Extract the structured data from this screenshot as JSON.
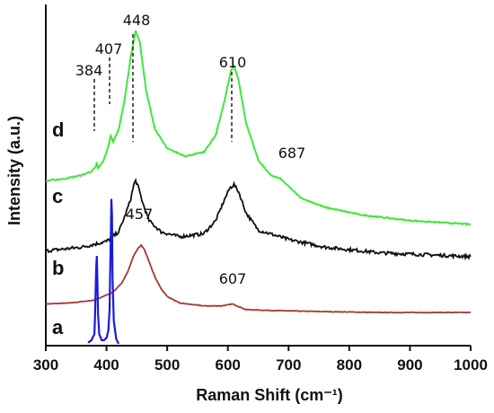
{
  "chart_data": {
    "type": "line",
    "title": "",
    "xlabel": "Raman Shift  (cm⁻¹)",
    "ylabel": "Intensity (a.u.)",
    "xlim": [
      300,
      1000
    ],
    "x_ticks": [
      "300",
      "400",
      "500",
      "600",
      "700",
      "800",
      "900",
      "1000"
    ],
    "y_ticks_shown": false,
    "grid": false,
    "legend": "none",
    "series": [
      {
        "name": "a",
        "color": "#1a1adf",
        "x": [
          370,
          375,
          380,
          381,
          382,
          383,
          384,
          385,
          386,
          388,
          392,
          396,
          400,
          403,
          405,
          406,
          407,
          408,
          409,
          410,
          412,
          416,
          420
        ],
        "y": [
          0.03,
          0.06,
          0.12,
          0.28,
          0.55,
          0.82,
          0.95,
          0.7,
          0.35,
          0.12,
          0.06,
          0.06,
          0.08,
          0.16,
          0.38,
          0.75,
          1.12,
          1.55,
          1.38,
          0.72,
          0.26,
          0.07,
          0.02
        ]
      },
      {
        "name": "b",
        "color": "#a33a33",
        "x": [
          300,
          340,
          380,
          410,
          425,
          435,
          445,
          452,
          457,
          462,
          470,
          480,
          490,
          500,
          520,
          560,
          590,
          600,
          607,
          615,
          630,
          680,
          750,
          850,
          1000
        ],
        "y": [
          0.44,
          0.45,
          0.48,
          0.56,
          0.66,
          0.78,
          0.95,
          1.03,
          1.06,
          1.02,
          0.89,
          0.72,
          0.6,
          0.52,
          0.45,
          0.42,
          0.42,
          0.43,
          0.44,
          0.42,
          0.38,
          0.37,
          0.36,
          0.35,
          0.35
        ]
      },
      {
        "name": "c",
        "color": "#111111",
        "x": [
          300,
          360,
          400,
          420,
          430,
          440,
          445,
          448,
          452,
          460,
          470,
          490,
          520,
          560,
          580,
          595,
          603,
          610,
          618,
          630,
          650,
          700,
          760,
          850,
          1000
        ],
        "y": [
          1.0,
          1.04,
          1.1,
          1.2,
          1.36,
          1.55,
          1.7,
          1.74,
          1.68,
          1.5,
          1.32,
          1.2,
          1.15,
          1.18,
          1.32,
          1.55,
          1.66,
          1.7,
          1.62,
          1.4,
          1.22,
          1.12,
          1.04,
          0.98,
          0.94
        ]
      },
      {
        "name": "d",
        "color": "#3fe83a",
        "x": [
          300,
          330,
          360,
          375,
          382,
          384,
          386,
          395,
          403,
          407,
          411,
          420,
          430,
          440,
          448,
          455,
          465,
          480,
          500,
          530,
          560,
          580,
          595,
          605,
          610,
          617,
          630,
          650,
          670,
          687,
          700,
          720,
          760,
          820,
          900,
          1000
        ],
        "y": [
          1.74,
          1.76,
          1.8,
          1.84,
          1.88,
          1.93,
          1.87,
          1.95,
          2.1,
          2.22,
          2.15,
          2.28,
          2.6,
          3.05,
          3.32,
          3.2,
          2.7,
          2.28,
          2.08,
          2.0,
          2.04,
          2.22,
          2.6,
          2.9,
          2.95,
          2.82,
          2.35,
          1.96,
          1.8,
          1.76,
          1.68,
          1.56,
          1.46,
          1.38,
          1.32,
          1.28
        ]
      }
    ],
    "annotations": [
      {
        "text": "384",
        "x": 384
      },
      {
        "text": "407",
        "x": 407
      },
      {
        "text": "448",
        "x": 448
      },
      {
        "text": "610",
        "x": 610
      },
      {
        "text": "687",
        "x": 687
      },
      {
        "text": "457",
        "x": 457
      },
      {
        "text": "607",
        "x": 607
      }
    ]
  }
}
